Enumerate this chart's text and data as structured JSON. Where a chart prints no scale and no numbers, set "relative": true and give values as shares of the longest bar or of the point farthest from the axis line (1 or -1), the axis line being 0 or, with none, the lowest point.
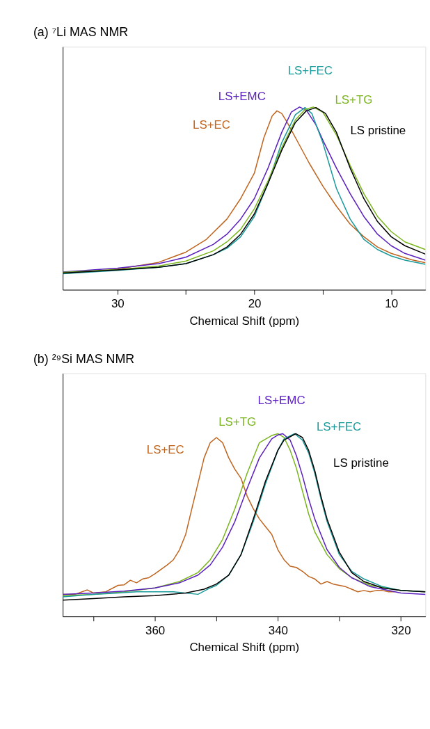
{
  "chart_data": [
    {
      "type": "line",
      "title": "(a) ⁷Li MAS NMR",
      "xlabel": "Chemical Shift (ppm)",
      "relative": true,
      "grid": false,
      "marker": "none",
      "line_style": "solid",
      "xlim": [
        34,
        7.5
      ],
      "xticks": [
        30,
        {
          "value": 25,
          "label": null
        },
        20,
        {
          "value": 15,
          "label": null
        },
        10
      ],
      "series": [
        {
          "name": "LS+EC",
          "color": "#c0651f",
          "x": [
            34,
            30,
            27,
            25,
            23.5,
            22,
            21,
            20,
            19.3,
            18.7,
            18.35,
            18,
            17.6,
            17,
            16,
            15,
            14,
            13,
            12,
            11,
            10,
            8.5,
            7.5
          ],
          "values": [
            0.088,
            0.113,
            0.15,
            0.206,
            0.276,
            0.387,
            0.499,
            0.638,
            0.833,
            0.951,
            0.979,
            0.965,
            0.916,
            0.833,
            0.694,
            0.568,
            0.457,
            0.359,
            0.29,
            0.234,
            0.199,
            0.164,
            0.148
          ]
        },
        {
          "name": "LS+EMC",
          "color": "#5a1fbf",
          "x": [
            34,
            30,
            27,
            25,
            23,
            22,
            21,
            20,
            19,
            18,
            17.3,
            16.7,
            16.2,
            15.5,
            15,
            14,
            13,
            12,
            11,
            10,
            9,
            7.5
          ],
          "values": [
            0.097,
            0.118,
            0.143,
            0.178,
            0.248,
            0.304,
            0.387,
            0.499,
            0.666,
            0.861,
            0.972,
            1.0,
            0.983,
            0.903,
            0.819,
            0.666,
            0.526,
            0.401,
            0.304,
            0.241,
            0.199,
            0.162
          ]
        },
        {
          "name": "LS+FEC",
          "color": "#1a9a9a",
          "x": [
            34,
            30,
            27,
            25,
            23,
            22,
            21,
            20,
            19,
            18,
            17,
            16.3,
            15.8,
            15,
            14,
            13,
            12,
            11,
            10,
            9,
            7.5
          ],
          "values": [
            0.088,
            0.106,
            0.123,
            0.143,
            0.192,
            0.227,
            0.29,
            0.401,
            0.582,
            0.805,
            0.958,
            0.997,
            0.965,
            0.805,
            0.554,
            0.387,
            0.276,
            0.22,
            0.185,
            0.162,
            0.139
          ]
        },
        {
          "name": "LS+TG",
          "color": "#7ab51d",
          "x": [
            34,
            30,
            27,
            25,
            23,
            22,
            21,
            20,
            19,
            18,
            17,
            16.3,
            15.7,
            15,
            14,
            13,
            12,
            11,
            10,
            9,
            7.5
          ],
          "values": [
            0.095,
            0.111,
            0.13,
            0.157,
            0.213,
            0.262,
            0.331,
            0.443,
            0.596,
            0.777,
            0.93,
            0.986,
            1.0,
            0.972,
            0.847,
            0.68,
            0.526,
            0.401,
            0.318,
            0.262,
            0.22
          ]
        },
        {
          "name": "LS pristine",
          "color": "#000000",
          "x": [
            34,
            30,
            27,
            25,
            23,
            22,
            21,
            20,
            19,
            18,
            17,
            16.2,
            15.5,
            14.8,
            14,
            13,
            12,
            11,
            10,
            9,
            7.5
          ],
          "values": [
            0.092,
            0.109,
            0.123,
            0.143,
            0.192,
            0.234,
            0.304,
            0.415,
            0.582,
            0.763,
            0.916,
            0.979,
            0.997,
            0.965,
            0.861,
            0.666,
            0.499,
            0.373,
            0.29,
            0.241,
            0.195
          ]
        }
      ]
    },
    {
      "type": "line",
      "title": "(b) ²⁹Si MAS NMR",
      "xlabel": "Chemical Shift (ppm)",
      "relative": true,
      "grid": false,
      "marker": "none",
      "line_style": "solid",
      "xlim": [
        375,
        316
      ],
      "xticks": [
        {
          "value": 370,
          "label": null
        },
        360,
        {
          "value": 350,
          "label": null
        },
        340,
        {
          "value": 330,
          "label": null
        },
        320
      ],
      "series": [
        {
          "name": "LS+EC",
          "color": "#c0651f",
          "x": [
            375,
            373,
            371,
            370,
            368,
            366,
            365,
            364,
            363,
            362,
            361,
            360,
            358,
            357,
            356,
            355,
            354,
            353,
            352,
            351,
            350,
            349,
            348,
            347,
            346,
            345,
            344,
            343,
            342,
            341,
            340,
            339,
            338,
            337,
            336,
            335,
            334,
            333,
            332,
            331,
            330,
            329,
            328,
            327,
            326,
            325,
            324,
            323,
            322,
            321
          ],
          "values": [
            0.121,
            0.121,
            0.145,
            0.128,
            0.135,
            0.17,
            0.173,
            0.198,
            0.184,
            0.205,
            0.212,
            0.233,
            0.282,
            0.31,
            0.365,
            0.449,
            0.589,
            0.728,
            0.868,
            0.951,
            0.979,
            0.951,
            0.868,
            0.805,
            0.756,
            0.658,
            0.589,
            0.533,
            0.491,
            0.449,
            0.365,
            0.31,
            0.275,
            0.268,
            0.247,
            0.219,
            0.205,
            0.177,
            0.191,
            0.177,
            0.17,
            0.163,
            0.149,
            0.135,
            0.142,
            0.135,
            0.142,
            0.142,
            0.135,
            0.135
          ]
        },
        {
          "name": "LS+TG",
          "color": "#7ab51d",
          "x": [
            375,
            370,
            365,
            360,
            356,
            353,
            351,
            349,
            347,
            345,
            343,
            341,
            340,
            339,
            338,
            337,
            336,
            335,
            334,
            332,
            330,
            328,
            325,
            320,
            316
          ],
          "values": [
            0.114,
            0.121,
            0.135,
            0.156,
            0.191,
            0.24,
            0.31,
            0.421,
            0.589,
            0.784,
            0.951,
            0.99,
            1.0,
            0.979,
            0.909,
            0.812,
            0.686,
            0.561,
            0.463,
            0.338,
            0.261,
            0.212,
            0.17,
            0.142,
            0.135
          ]
        },
        {
          "name": "LS+EMC",
          "color": "#5a1fbf",
          "x": [
            375,
            370,
            365,
            360,
            356,
            353,
            351,
            349,
            347,
            345,
            343,
            341,
            340,
            339.2,
            338,
            337,
            336,
            335,
            334,
            332,
            330,
            328,
            325,
            320,
            316
          ],
          "values": [
            0.121,
            0.128,
            0.139,
            0.156,
            0.184,
            0.226,
            0.282,
            0.379,
            0.519,
            0.7,
            0.868,
            0.972,
            0.993,
            1.0,
            0.965,
            0.881,
            0.77,
            0.644,
            0.533,
            0.365,
            0.268,
            0.212,
            0.163,
            0.128,
            0.121
          ]
        },
        {
          "name": "LS+FEC",
          "color": "#1a9a9a",
          "x": [
            375,
            370,
            366,
            363,
            360,
            357,
            353,
            351,
            350,
            348,
            346,
            344,
            342,
            340,
            339,
            337.3,
            336,
            335,
            334,
            333,
            332,
            330,
            328,
            326,
            323,
            320,
            316
          ],
          "values": [
            0.107,
            0.121,
            0.128,
            0.135,
            0.135,
            0.135,
            0.121,
            0.156,
            0.17,
            0.226,
            0.338,
            0.519,
            0.728,
            0.909,
            0.972,
            1.0,
            0.965,
            0.895,
            0.784,
            0.644,
            0.519,
            0.338,
            0.247,
            0.205,
            0.163,
            0.142,
            0.135
          ]
        },
        {
          "name": "LS pristine",
          "color": "#000000",
          "x": [
            375,
            370,
            365,
            360,
            355,
            352,
            350,
            348,
            346,
            344,
            342,
            340,
            339,
            337.1,
            336,
            335,
            334,
            333,
            332,
            330,
            328,
            326,
            323,
            320,
            316
          ],
          "values": [
            0.089,
            0.098,
            0.107,
            0.114,
            0.128,
            0.149,
            0.177,
            0.226,
            0.338,
            0.533,
            0.742,
            0.909,
            0.965,
            1.0,
            0.979,
            0.909,
            0.798,
            0.658,
            0.533,
            0.351,
            0.24,
            0.191,
            0.156,
            0.142,
            0.135
          ]
        }
      ]
    }
  ]
}
